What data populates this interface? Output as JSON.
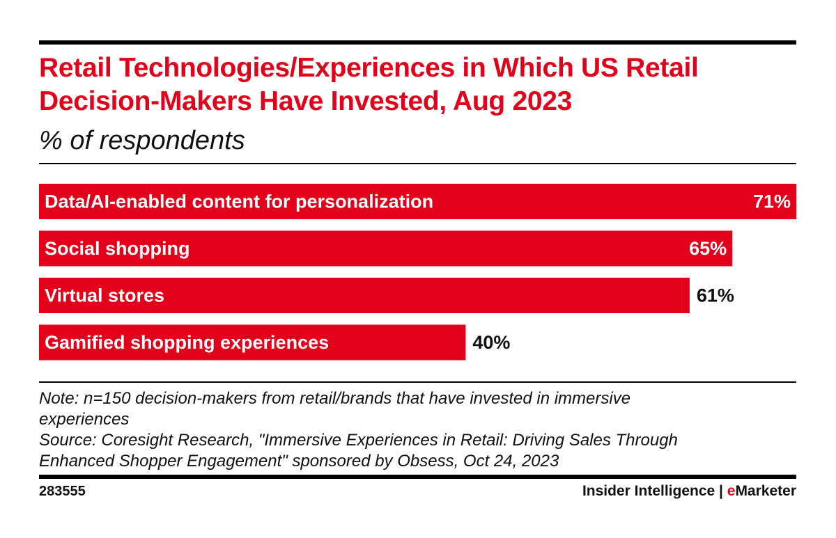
{
  "chart_data": {
    "type": "bar",
    "orientation": "horizontal",
    "title": "Retail Technologies/Experiences in Which US Retail Decision-Makers Have Invested, Aug 2023",
    "subtitle": "% of respondents",
    "categories": [
      "Data/AI-enabled content for personalization",
      "Social shopping",
      "Virtual stores",
      "Gamified shopping experiences"
    ],
    "values": [
      71,
      65,
      61,
      40
    ],
    "value_labels": [
      "71%",
      "65%",
      "61%",
      "40%"
    ],
    "value_unit": "%",
    "xlim": [
      0,
      71
    ],
    "grid": false,
    "legend": "none",
    "bar_color": "#e2001a"
  },
  "note_lines": [
    "Note: n=150 decision-makers from retail/brands that have invested in immersive",
    "experiences",
    "Source: Coresight Research, \"Immersive Experiences in Retail: Driving Sales Through",
    "Enhanced Shopper Engagement\" sponsored by Obsess, Oct 24, 2023"
  ],
  "footer": {
    "chart_id": "283555",
    "brand_primary": "Insider Intelligence",
    "brand_separator": " | ",
    "brand_accent_initial": "e",
    "brand_accent_rest": "Marketer"
  },
  "colors": {
    "accent": "#e2001a",
    "text": "#111111",
    "rule": "#000000"
  }
}
